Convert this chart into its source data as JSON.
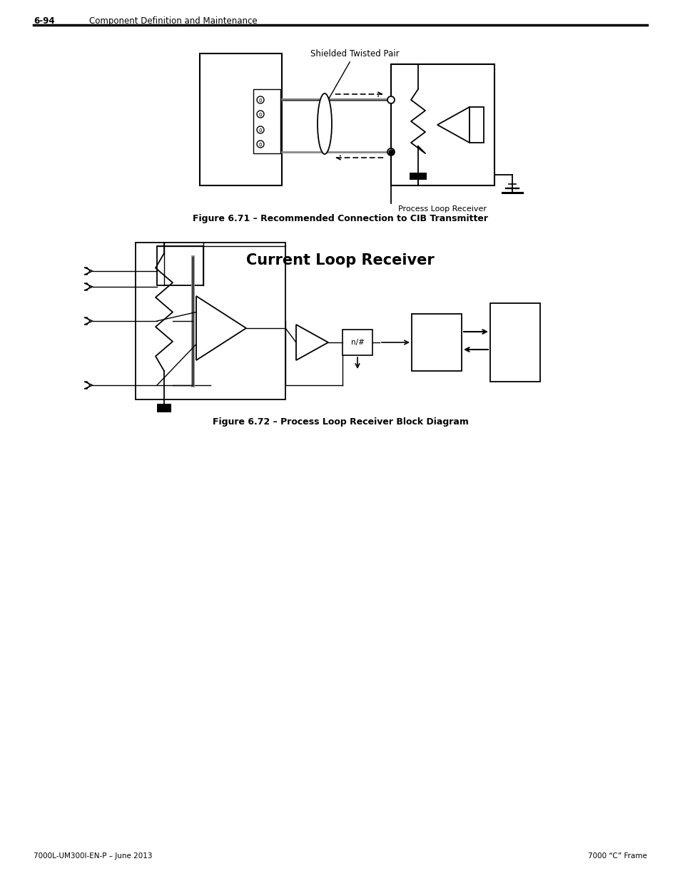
{
  "page_header_number": "6-94",
  "page_header_text": "Component Definition and Maintenance",
  "footer_left": "7000L-UM300I-EN-P – June 2013",
  "footer_right": "7000 “C” Frame",
  "section_title": "Current Loop Receiver",
  "fig71_caption": "Figure 6.71 – Recommended Connection to CIB Transmitter",
  "fig72_caption": "Figure 6.72 – Process Loop Receiver Block Diagram",
  "bg_color": "#ffffff",
  "line_color": "#000000"
}
